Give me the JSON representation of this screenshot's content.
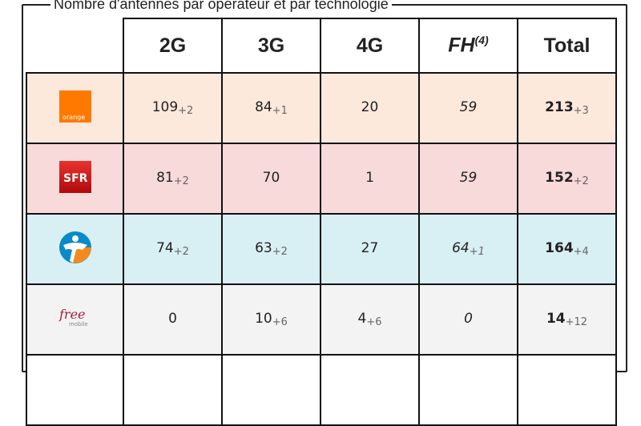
{
  "title": "Nombre d'antennes par opérateur et par technologie",
  "headers": [
    "2G",
    "3G",
    "4G",
    "FH",
    "Total"
  ],
  "fh_note": "(4)",
  "rows": [
    {
      "operator": "orange",
      "logo_text": "orange",
      "color": "#ff7900",
      "cells": [
        [
          "109",
          "+2"
        ],
        [
          "84",
          "+1"
        ],
        [
          "20",
          ""
        ],
        [
          "59",
          ""
        ],
        [
          "213",
          "+3"
        ]
      ]
    },
    {
      "operator": "sfr",
      "logo_text": "SFR",
      "color": "#d40f14",
      "cells": [
        [
          "81",
          "+2"
        ],
        [
          "70",
          ""
        ],
        [
          "1",
          ""
        ],
        [
          "59",
          ""
        ],
        [
          "152",
          "+2"
        ]
      ]
    },
    {
      "operator": "bouygues",
      "logo_text": "",
      "color": "#0a8ac8",
      "cells": [
        [
          "74",
          "+2"
        ],
        [
          "63",
          "+2"
        ],
        [
          "27",
          ""
        ],
        [
          "64",
          "+1"
        ],
        [
          "164",
          "+4"
        ]
      ]
    },
    {
      "operator": "free",
      "logo_text": "free",
      "logo_sub": "mobile",
      "color": "#a11c3a",
      "cells": [
        [
          "0",
          ""
        ],
        [
          "10",
          "+6"
        ],
        [
          "4",
          "+6"
        ],
        [
          "0",
          ""
        ],
        [
          "14",
          "+12"
        ]
      ]
    }
  ]
}
